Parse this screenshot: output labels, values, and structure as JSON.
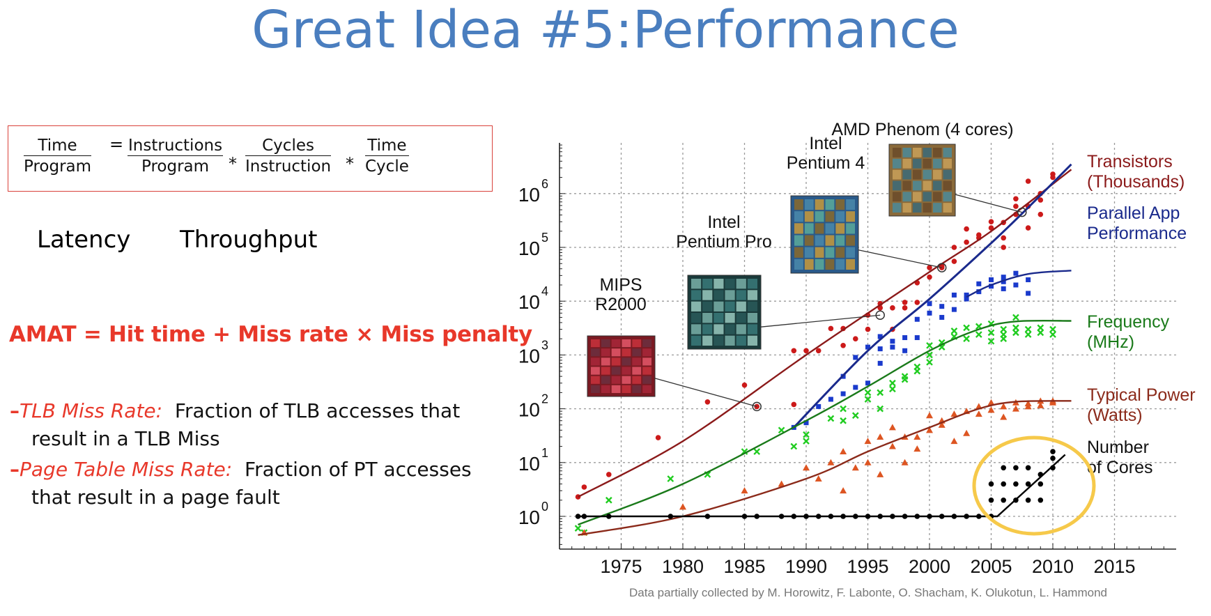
{
  "slide": {
    "title": "Great Idea #5:Performance"
  },
  "formula": {
    "lhs": {
      "num": "Time",
      "den": "Program"
    },
    "eq": "=",
    "t1": {
      "num": "Instructions",
      "den": "Program"
    },
    "times1": "*",
    "t2": {
      "num": "Cycles",
      "den": "Instruction"
    },
    "times2": "*",
    "t3": {
      "num": "Time",
      "den": "Cycle"
    }
  },
  "labels": {
    "latency": "Latency",
    "throughput": "Throughput"
  },
  "amat": "AMAT = Hit time + Miss rate × Miss penalty",
  "bullets": [
    {
      "dash": "–",
      "term": "TLB Miss Rate:",
      "rest": "Fraction of TLB accesses that",
      "cont": "result in a TLB Miss"
    },
    {
      "dash": "–",
      "term": "Page Table Miss Rate:",
      "rest": "Fraction of PT accesses",
      "cont": "that result in a page fault"
    }
  ],
  "chart_data": {
    "type": "scatter",
    "title": "",
    "xlabel": "",
    "ylabel": "",
    "x_scale": "linear",
    "y_scale": "log",
    "xlim": [
      1970,
      2020
    ],
    "ylim": [
      0.3,
      10000000
    ],
    "x_ticks": [
      "1975",
      "1980",
      "1985",
      "1990",
      "1995",
      "2000",
      "2005",
      "2010",
      "2015"
    ],
    "y_ticks": [
      "10",
      "10",
      "10",
      "10",
      "10",
      "10",
      "10"
    ],
    "y_tick_exponents": [
      "0",
      "1",
      "2",
      "3",
      "4",
      "5",
      "6"
    ],
    "grid": true,
    "credit": "Data partially collected by M. Horowitz, F. Labonte, O. Shacham, K. Olukotun, L. Hammond",
    "series": [
      {
        "name": "Transistors (Thousands)",
        "label_lines": [
          "Transistors",
          "(Thousands)"
        ],
        "color": "#8b1a1a",
        "point_color": "#cc1a1a",
        "marker": "circle",
        "trend": [
          [
            1971.5,
            2.3
          ],
          [
            1980,
            25
          ],
          [
            1990,
            1000
          ],
          [
            2000,
            35000
          ],
          [
            2005,
            200000
          ],
          [
            2011.5,
            2800000
          ]
        ],
        "points": [
          [
            1971.5,
            2.3
          ],
          [
            1972,
            3.5
          ],
          [
            1974,
            6
          ],
          [
            1978,
            29
          ],
          [
            1982,
            134
          ],
          [
            1985,
            275
          ],
          [
            1986,
            110
          ],
          [
            1989,
            120
          ],
          [
            1989,
            1200
          ],
          [
            1990,
            1200
          ],
          [
            1991,
            1200
          ],
          [
            1992,
            3100
          ],
          [
            1993,
            3100
          ],
          [
            1993,
            1500
          ],
          [
            1994,
            2000
          ],
          [
            1995,
            5500
          ],
          [
            1995,
            3000
          ],
          [
            1996,
            7500
          ],
          [
            1996,
            9000
          ],
          [
            1997,
            7500
          ],
          [
            1997,
            3000
          ],
          [
            1998,
            9500
          ],
          [
            1998,
            7500
          ],
          [
            1999,
            9500
          ],
          [
            1999,
            22000
          ],
          [
            2000,
            28000
          ],
          [
            2000,
            42000
          ],
          [
            2001,
            42000
          ],
          [
            2001,
            45000
          ],
          [
            2002,
            55000
          ],
          [
            2002,
            100000
          ],
          [
            2003,
            125000
          ],
          [
            2003,
            220000
          ],
          [
            2004,
            150000
          ],
          [
            2004,
            170000
          ],
          [
            2005,
            230000
          ],
          [
            2005,
            300000
          ],
          [
            2006,
            290000
          ],
          [
            2006,
            150000
          ],
          [
            2006,
            100000
          ],
          [
            2007,
            580000
          ],
          [
            2007,
            410000
          ],
          [
            2007,
            800000
          ],
          [
            2008,
            230000
          ],
          [
            2008,
            580000
          ],
          [
            2008,
            1700000
          ],
          [
            2009,
            760000
          ],
          [
            2009,
            410000
          ],
          [
            2009,
            1000000
          ],
          [
            2010,
            2300000
          ],
          [
            2010,
            2000000
          ]
        ]
      },
      {
        "name": "Parallel App Performance",
        "label_lines": [
          "Parallel App",
          "Performance"
        ],
        "color": "#1a2a8c",
        "point_color": "#1a3acc",
        "marker": "square",
        "trend": [
          [
            1989,
            45
          ],
          [
            1995,
            1200
          ],
          [
            2000,
            11000
          ],
          [
            2005,
            120000
          ],
          [
            2008,
            550000
          ],
          [
            2011.5,
            3500000
          ]
        ],
        "trend2": [
          [
            2003,
            12000
          ],
          [
            2005,
            20000
          ],
          [
            2008,
            32000
          ],
          [
            2011.5,
            37000
          ]
        ],
        "points": [
          [
            1989,
            45
          ],
          [
            1990,
            55
          ],
          [
            1991,
            110
          ],
          [
            1992,
            150
          ],
          [
            1993,
            190
          ],
          [
            1993,
            400
          ],
          [
            1994,
            250
          ],
          [
            1994,
            900
          ],
          [
            1995,
            300
          ],
          [
            1995,
            1400
          ],
          [
            1996,
            700
          ],
          [
            1996,
            1300
          ],
          [
            1996,
            2200
          ],
          [
            1997,
            1400
          ],
          [
            1997,
            1800
          ],
          [
            1998,
            1200
          ],
          [
            1998,
            2100
          ],
          [
            1999,
            4600
          ],
          [
            1999,
            2100
          ],
          [
            2000,
            6000
          ],
          [
            2000,
            9000
          ],
          [
            2001,
            5000
          ],
          [
            2001,
            8000
          ],
          [
            2002,
            7000
          ],
          [
            2002,
            13000
          ],
          [
            2003,
            11000
          ],
          [
            2003,
            13000
          ],
          [
            2004,
            15000
          ],
          [
            2004,
            21000
          ],
          [
            2005,
            19000
          ],
          [
            2005,
            25000
          ],
          [
            2006,
            23000
          ],
          [
            2006,
            28000
          ],
          [
            2006,
            17000
          ],
          [
            2007,
            33000
          ],
          [
            2007,
            20000
          ],
          [
            2008,
            25000
          ],
          [
            2008,
            14000
          ]
        ]
      },
      {
        "name": "Frequency (MHz)",
        "label_lines": [
          "Frequency",
          "(MHz)"
        ],
        "color": "#1a7a1a",
        "point_color": "#20cc20",
        "marker": "x",
        "trend": [
          [
            1971.5,
            0.7
          ],
          [
            1980,
            4
          ],
          [
            1990,
            60
          ],
          [
            1995,
            260
          ],
          [
            2000,
            1200
          ],
          [
            2004,
            3000
          ],
          [
            2007,
            4200
          ],
          [
            2011.5,
            4300
          ]
        ],
        "points": [
          [
            1971.5,
            0.6
          ],
          [
            1972,
            0.5
          ],
          [
            1974,
            2
          ],
          [
            1979,
            5
          ],
          [
            1982,
            6
          ],
          [
            1985,
            16
          ],
          [
            1986,
            16
          ],
          [
            1988,
            40
          ],
          [
            1989,
            20
          ],
          [
            1990,
            33
          ],
          [
            1990,
            25
          ],
          [
            1992,
            66
          ],
          [
            1993,
            60
          ],
          [
            1993,
            100
          ],
          [
            1994,
            75
          ],
          [
            1995,
            150
          ],
          [
            1995,
            200
          ],
          [
            1996,
            200
          ],
          [
            1996,
            100
          ],
          [
            1997,
            300
          ],
          [
            1997,
            233
          ],
          [
            1998,
            400
          ],
          [
            1998,
            350
          ],
          [
            1999,
            600
          ],
          [
            1999,
            500
          ],
          [
            2000,
            1000
          ],
          [
            2000,
            1500
          ],
          [
            2000,
            733
          ],
          [
            2001,
            1700
          ],
          [
            2001,
            1400
          ],
          [
            2002,
            2800
          ],
          [
            2002,
            2200
          ],
          [
            2003,
            3200
          ],
          [
            2003,
            2000
          ],
          [
            2004,
            3400
          ],
          [
            2004,
            2400
          ],
          [
            2005,
            3800
          ],
          [
            2005,
            2600
          ],
          [
            2005,
            1800
          ],
          [
            2006,
            3000
          ],
          [
            2006,
            2400
          ],
          [
            2006,
            2000
          ],
          [
            2007,
            3200
          ],
          [
            2007,
            2600
          ],
          [
            2007,
            5000
          ],
          [
            2008,
            3000
          ],
          [
            2008,
            2400
          ],
          [
            2009,
            3200
          ],
          [
            2009,
            2600
          ],
          [
            2010,
            3000
          ],
          [
            2010,
            2400
          ]
        ]
      },
      {
        "name": "Typical Power (Watts)",
        "label_lines": [
          "Typical Power",
          "(Watts)"
        ],
        "color": "#8b2a1a",
        "point_color": "#dd5522",
        "marker": "triangle",
        "trend": [
          [
            1971.5,
            0.45
          ],
          [
            1980,
            1
          ],
          [
            1990,
            5
          ],
          [
            1995,
            16
          ],
          [
            2000,
            45
          ],
          [
            2004,
            100
          ],
          [
            2007,
            135
          ],
          [
            2011.5,
            140
          ]
        ],
        "points": [
          [
            1972,
            0.5
          ],
          [
            1980,
            1.5
          ],
          [
            1985,
            3
          ],
          [
            1988,
            4
          ],
          [
            1990,
            8
          ],
          [
            1991,
            5
          ],
          [
            1992,
            10
          ],
          [
            1993,
            3
          ],
          [
            1993,
            16
          ],
          [
            1994,
            8
          ],
          [
            1995,
            25
          ],
          [
            1995,
            10
          ],
          [
            1996,
            30
          ],
          [
            1996,
            6
          ],
          [
            1997,
            20
          ],
          [
            1997,
            45
          ],
          [
            1998,
            10
          ],
          [
            1998,
            30
          ],
          [
            1999,
            30
          ],
          [
            1999,
            18
          ],
          [
            2000,
            75
          ],
          [
            2000,
            40
          ],
          [
            2001,
            60
          ],
          [
            2001,
            50
          ],
          [
            2002,
            80
          ],
          [
            2002,
            25
          ],
          [
            2003,
            90
          ],
          [
            2003,
            35
          ],
          [
            2004,
            110
          ],
          [
            2004,
            80
          ],
          [
            2005,
            130
          ],
          [
            2005,
            95
          ],
          [
            2006,
            110
          ],
          [
            2006,
            70
          ],
          [
            2007,
            130
          ],
          [
            2007,
            100
          ],
          [
            2008,
            110
          ],
          [
            2008,
            125
          ],
          [
            2009,
            140
          ],
          [
            2009,
            115
          ],
          [
            2010,
            140
          ],
          [
            2010,
            130
          ]
        ]
      },
      {
        "name": "Number of Cores",
        "label_lines": [
          "Number",
          "of Cores"
        ],
        "color": "#000000",
        "point_color": "#000000",
        "marker": "dot",
        "trend": [
          [
            1971.5,
            1
          ],
          [
            2005.5,
            1
          ],
          [
            2011,
            14
          ]
        ],
        "points": [
          [
            1971.5,
            1
          ],
          [
            1972,
            1
          ],
          [
            1974,
            1
          ],
          [
            1979,
            1
          ],
          [
            1982,
            1
          ],
          [
            1985,
            1
          ],
          [
            1986,
            1
          ],
          [
            1988,
            1
          ],
          [
            1989,
            1
          ],
          [
            1990,
            1
          ],
          [
            1991,
            1
          ],
          [
            1992,
            1
          ],
          [
            1993,
            1
          ],
          [
            1994,
            1
          ],
          [
            1995,
            1
          ],
          [
            1996,
            1
          ],
          [
            1997,
            1
          ],
          [
            1998,
            1
          ],
          [
            1999,
            1
          ],
          [
            2000,
            1
          ],
          [
            2001,
            1
          ],
          [
            2002,
            1
          ],
          [
            2003,
            1
          ],
          [
            2004,
            1
          ],
          [
            2005,
            1
          ],
          [
            2005,
            2
          ],
          [
            2005,
            4
          ],
          [
            2006,
            2
          ],
          [
            2006,
            4
          ],
          [
            2006,
            8
          ],
          [
            2007,
            2
          ],
          [
            2007,
            4
          ],
          [
            2007,
            8
          ],
          [
            2008,
            2
          ],
          [
            2008,
            4
          ],
          [
            2008,
            8
          ],
          [
            2009,
            2
          ],
          [
            2009,
            4
          ],
          [
            2009,
            6
          ],
          [
            2010,
            8
          ],
          [
            2010,
            12
          ],
          [
            2010,
            16
          ]
        ]
      }
    ],
    "annotations": [
      {
        "label_lines": [
          "MIPS",
          "R2000"
        ],
        "x": 1986,
        "y": 110,
        "chip": "red"
      },
      {
        "label_lines": [
          "Intel",
          "Pentium Pro"
        ],
        "x": 1996,
        "y": 5500,
        "chip": "teal"
      },
      {
        "label_lines": [
          "Intel",
          "Pentium 4"
        ],
        "x": 2001,
        "y": 42000,
        "chip": "mixed"
      },
      {
        "label_lines": [
          "AMD Phenom (4 cores)"
        ],
        "x": 2007.5,
        "y": 450000,
        "chip": "amd"
      }
    ],
    "highlight": {
      "shape": "ellipse",
      "color": "#f6c94a",
      "around": "Number of Cores 2005-2010"
    }
  }
}
